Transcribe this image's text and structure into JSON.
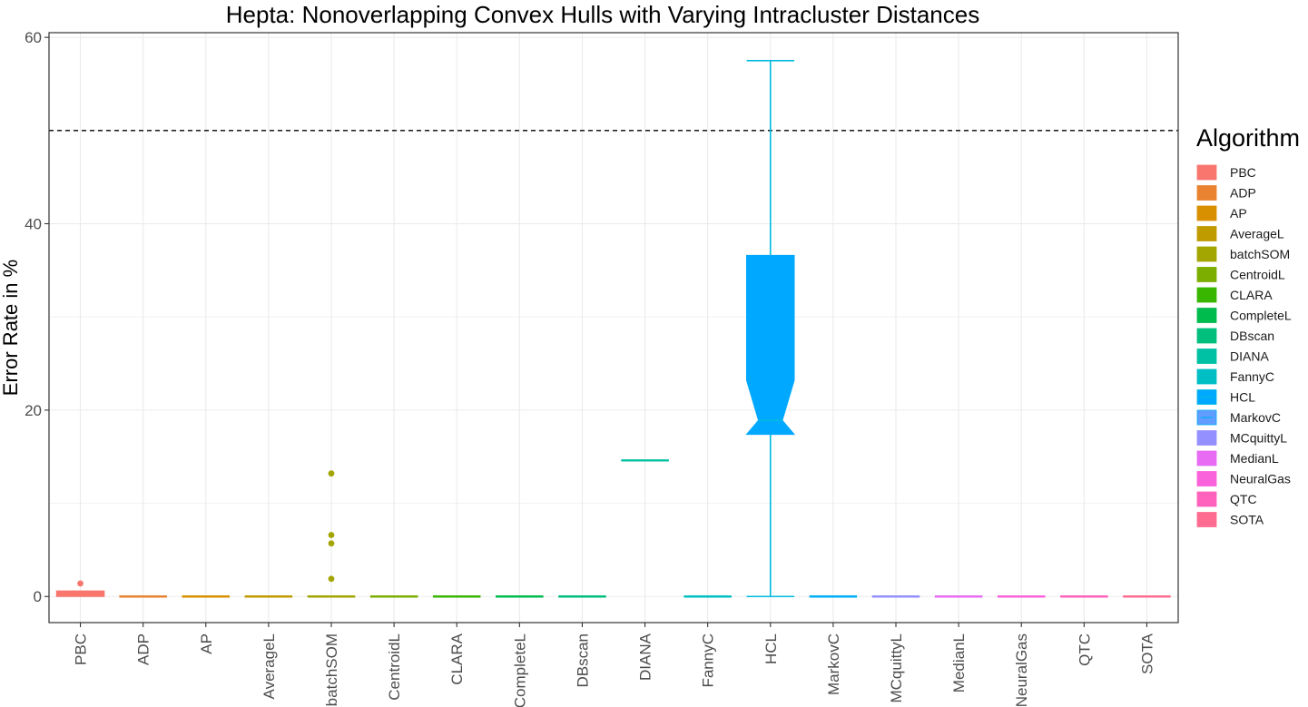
{
  "chart_data": {
    "type": "box",
    "title": "Hepta: Nonoverlapping Convex Hulls with Varying Intracluster Distances",
    "xlabel": "",
    "ylabel": "Error Rate in %",
    "ylim": [
      -2.8,
      60.5
    ],
    "yticks": [
      0,
      20,
      40,
      60
    ],
    "grid": true,
    "notched": true,
    "reference_line": {
      "y": 50,
      "style": "dashed"
    },
    "legend": {
      "title": "Algorithm",
      "position": "right"
    },
    "categories": [
      "PBC",
      "ADP",
      "AP",
      "AverageL",
      "batchSOM",
      "CentroidL",
      "CLARA",
      "CompleteL",
      "DBscan",
      "DIANA",
      "FannyC",
      "HCL",
      "MarkovC",
      "MCquittyL",
      "MedianL",
      "NeuralGas",
      "QTC",
      "SOTA"
    ],
    "colors": [
      "#F8766D",
      "#EA8331",
      "#D89000",
      "#C09B00",
      "#A3A500",
      "#7CAE00",
      "#39B600",
      "#00BB4E",
      "#00BF7D",
      "#00C1A3",
      "#00BFC4",
      "#00BAE0",
      "#00B0F6",
      "#9590FF",
      "#E76BF3",
      "#FA62DB",
      "#FF62BC",
      "#FF6C91"
    ],
    "fill_colors": [
      "#F8766D",
      "#EA8331",
      "#D89000",
      "#C09B00",
      "#A3A500",
      "#7CAE00",
      "#39B600",
      "#00BB4E",
      "#00BF7D",
      "#00C1A3",
      "#00BFC4",
      "#00A9FF",
      "#619CFF",
      "#9590FF",
      "#E76BF3",
      "#FA62DB",
      "#FF62BC",
      "#FF6C91"
    ],
    "boxes": [
      {
        "min": 0,
        "q1": 0,
        "median": 0.3,
        "q3": 0.6,
        "max": 0.6,
        "notch": [
          0.2,
          0.4
        ],
        "outliers": [
          1.4
        ]
      },
      {
        "min": 0,
        "q1": 0,
        "median": 0,
        "q3": 0,
        "max": 0,
        "outliers": []
      },
      {
        "min": 0,
        "q1": 0,
        "median": 0,
        "q3": 0,
        "max": 0,
        "outliers": []
      },
      {
        "min": 0,
        "q1": 0,
        "median": 0,
        "q3": 0,
        "max": 0,
        "outliers": []
      },
      {
        "min": 0,
        "q1": 0,
        "median": 0,
        "q3": 0,
        "max": 0,
        "outliers": [
          1.9,
          5.7,
          6.6,
          13.2
        ]
      },
      {
        "min": 0,
        "q1": 0,
        "median": 0,
        "q3": 0,
        "max": 0,
        "outliers": []
      },
      {
        "min": 0,
        "q1": 0,
        "median": 0,
        "q3": 0,
        "max": 0,
        "outliers": []
      },
      {
        "min": 0,
        "q1": 0,
        "median": 0,
        "q3": 0,
        "max": 0,
        "outliers": []
      },
      {
        "min": 0,
        "q1": 0,
        "median": 0,
        "q3": 0,
        "max": 0,
        "outliers": []
      },
      {
        "min": 14.6,
        "q1": 14.6,
        "median": 14.6,
        "q3": 14.6,
        "max": 14.6,
        "outliers": []
      },
      {
        "min": 0,
        "q1": 0,
        "median": 0,
        "q3": 0,
        "max": 0,
        "outliers": []
      },
      {
        "min": 0,
        "q1": 17.4,
        "median": 18.9,
        "q3": 36.6,
        "max": 57.5,
        "notch": [
          17.4,
          23.2
        ],
        "outliers": []
      },
      {
        "min": 0,
        "q1": 0,
        "median": 0,
        "q3": 0,
        "max": 0,
        "outliers": []
      },
      {
        "min": 0,
        "q1": 0,
        "median": 0,
        "q3": 0,
        "max": 0,
        "outliers": []
      },
      {
        "min": 0,
        "q1": 0,
        "median": 0,
        "q3": 0,
        "max": 0,
        "outliers": []
      },
      {
        "min": 0,
        "q1": 0,
        "median": 0,
        "q3": 0,
        "max": 0,
        "outliers": []
      },
      {
        "min": 0,
        "q1": 0,
        "median": 0,
        "q3": 0,
        "max": 0,
        "outliers": []
      },
      {
        "min": 0,
        "q1": 0,
        "median": 0,
        "q3": 0,
        "max": 0,
        "outliers": []
      }
    ]
  }
}
